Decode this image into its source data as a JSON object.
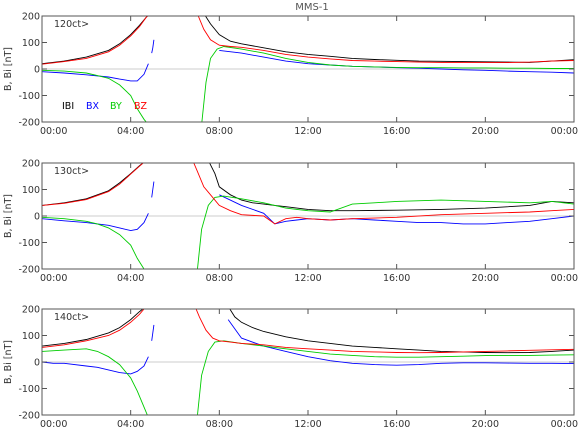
{
  "title": "MMS-1",
  "colors": {
    "B": "#000000",
    "BX": "#0000ff",
    "BY": "#00cc00",
    "BZ": "#ff0000",
    "zero": "#bbbbbb",
    "axis": "#555555"
  },
  "chart_data": [
    {
      "type": "line",
      "panel_label": "120ct>",
      "ylabel": "B, Bi  [nT]",
      "ylim": [
        -200,
        200
      ],
      "yticks": [
        -200,
        -100,
        0,
        100,
        200
      ],
      "xlim": [
        0,
        24
      ],
      "xtick_labels": [
        "00:00",
        "04:00",
        "08:00",
        "12:00",
        "16:00",
        "20:00",
        "00:00"
      ],
      "legend": [
        "IBI",
        "BX",
        "BY",
        "BZ"
      ],
      "series": [
        {
          "name": "IBI",
          "segments": [
            {
              "x": [
                0,
                1,
                2,
                3,
                3.5,
                4,
                4.4,
                4.7,
                4.9
              ],
              "y": [
                20,
                30,
                45,
                70,
                95,
                130,
                165,
                195,
                210
              ]
            },
            {
              "x": [
                7.3,
                7.6,
                8,
                8.5,
                9,
                10,
                11,
                12,
                13,
                14,
                15,
                16,
                17,
                18,
                19,
                20,
                21,
                22,
                23,
                24
              ],
              "y": [
                210,
                170,
                130,
                105,
                95,
                80,
                65,
                55,
                48,
                40,
                36,
                33,
                30,
                29,
                28,
                27,
                26,
                25,
                30,
                35
              ]
            }
          ]
        },
        {
          "name": "BX",
          "segments": [
            {
              "x": [
                0,
                1,
                2,
                3,
                3.5,
                4,
                4.3,
                4.6,
                4.8
              ],
              "y": [
                -10,
                -15,
                -22,
                -30,
                -38,
                -45,
                -45,
                -20,
                20
              ]
            },
            {
              "x": [
                4.95,
                5.0,
                5.05
              ],
              "y": [
                60,
                80,
                110
              ]
            },
            {
              "x": [
                8,
                9,
                10,
                11,
                12,
                13,
                14,
                15,
                16,
                17,
                18,
                19,
                20,
                21,
                22,
                23,
                24
              ],
              "y": [
                70,
                60,
                45,
                30,
                20,
                15,
                10,
                8,
                5,
                3,
                0,
                -3,
                -5,
                -8,
                -10,
                -12,
                -15
              ]
            }
          ]
        },
        {
          "name": "BY",
          "segments": [
            {
              "x": [
                0,
                1,
                2,
                2.5,
                3,
                3.5,
                4,
                4.3,
                4.6,
                4.8
              ],
              "y": [
                -5,
                -8,
                -15,
                -25,
                -35,
                -60,
                -100,
                -150,
                -190,
                -210
              ]
            },
            {
              "x": [
                7.2,
                7.4,
                7.6,
                7.9,
                8.2,
                9,
                10,
                11,
                12,
                13,
                14,
                15,
                16,
                17,
                18,
                19,
                20,
                21,
                22,
                23,
                24
              ],
              "y": [
                -210,
                -50,
                40,
                75,
                85,
                75,
                60,
                40,
                25,
                15,
                10,
                8,
                6,
                5,
                5,
                4,
                4,
                3,
                3,
                2,
                2
              ]
            }
          ]
        },
        {
          "name": "BZ",
          "segments": [
            {
              "x": [
                0,
                1,
                2,
                3,
                3.5,
                4,
                4.4,
                4.7,
                4.9
              ],
              "y": [
                18,
                28,
                40,
                65,
                90,
                125,
                160,
                195,
                210
              ]
            },
            {
              "x": [
                7.0,
                7.3,
                7.6,
                8,
                8.5,
                9,
                10,
                11,
                12,
                13,
                14,
                15,
                16,
                17,
                18,
                19,
                20,
                21,
                22,
                23,
                24
              ],
              "y": [
                210,
                150,
                110,
                90,
                85,
                82,
                70,
                55,
                45,
                38,
                32,
                30,
                28,
                26,
                25,
                24,
                24,
                24,
                26,
                30,
                32
              ]
            }
          ]
        }
      ]
    },
    {
      "type": "line",
      "panel_label": "130ct>",
      "ylabel": "B, Bi  [nT]",
      "ylim": [
        -200,
        200
      ],
      "yticks": [
        -200,
        -100,
        0,
        100,
        200
      ],
      "xlim": [
        0,
        24
      ],
      "xtick_labels": [
        "00:00",
        "04:00",
        "08:00",
        "12:00",
        "16:00",
        "20:00",
        "00:00"
      ],
      "series": [
        {
          "name": "IBI",
          "segments": [
            {
              "x": [
                0,
                1,
                2,
                3,
                3.5,
                4,
                4.4,
                4.7,
                4.9
              ],
              "y": [
                40,
                50,
                65,
                95,
                125,
                160,
                190,
                210,
                210
              ]
            },
            {
              "x": [
                7.5,
                7.8,
                8,
                8.5,
                9,
                9.5,
                10,
                10.5,
                11,
                11.5,
                12,
                13,
                14,
                16,
                18,
                20,
                22,
                23,
                24
              ],
              "y": [
                210,
                160,
                110,
                80,
                60,
                50,
                45,
                40,
                35,
                30,
                25,
                20,
                20,
                22,
                25,
                30,
                40,
                55,
                50
              ]
            }
          ]
        },
        {
          "name": "BX",
          "segments": [
            {
              "x": [
                0,
                1,
                2,
                3,
                3.5,
                4,
                4.3,
                4.6,
                4.8
              ],
              "y": [
                -10,
                -18,
                -25,
                -35,
                -45,
                -55,
                -50,
                -25,
                10
              ]
            },
            {
              "x": [
                4.95,
                5.0,
                5.05
              ],
              "y": [
                70,
                100,
                130
              ]
            },
            {
              "x": [
                8,
                9,
                10,
                10.5,
                11,
                11.5,
                12,
                13,
                14,
                15,
                16,
                17,
                18,
                19,
                20,
                21,
                22,
                23,
                24
              ],
              "y": [
                80,
                40,
                10,
                -30,
                -20,
                -15,
                -10,
                -15,
                -10,
                -15,
                -20,
                -25,
                -25,
                -30,
                -30,
                -25,
                -20,
                -10,
                0
              ]
            }
          ]
        },
        {
          "name": "BY",
          "segments": [
            {
              "x": [
                0,
                1,
                2,
                2.5,
                3,
                3.5,
                4,
                4.3,
                4.6,
                4.8
              ],
              "y": [
                -5,
                -10,
                -20,
                -30,
                -45,
                -70,
                -110,
                -160,
                -200,
                -210
              ]
            },
            {
              "x": [
                7.0,
                7.2,
                7.5,
                7.8,
                8.2,
                9,
                10,
                10.5,
                11,
                11.5,
                12,
                13,
                14,
                15,
                16,
                18,
                20,
                22,
                23,
                24
              ],
              "y": [
                -210,
                -50,
                40,
                70,
                75,
                65,
                50,
                40,
                30,
                25,
                20,
                15,
                45,
                50,
                55,
                60,
                55,
                50,
                55,
                45
              ]
            }
          ]
        },
        {
          "name": "BZ",
          "segments": [
            {
              "x": [
                0,
                1,
                2,
                3,
                3.5,
                4,
                4.4,
                4.7,
                4.9
              ],
              "y": [
                40,
                48,
                62,
                92,
                120,
                158,
                188,
                210,
                210
              ]
            },
            {
              "x": [
                6.8,
                7.0,
                7.3,
                7.7,
                8,
                8.5,
                9,
                10,
                10.5,
                11,
                11.5,
                12,
                13,
                14,
                16,
                18,
                20,
                22,
                23,
                24
              ],
              "y": [
                210,
                170,
                110,
                70,
                40,
                20,
                5,
                0,
                -30,
                -10,
                -5,
                -10,
                -15,
                -10,
                -5,
                5,
                10,
                15,
                20,
                25
              ]
            }
          ]
        }
      ]
    },
    {
      "type": "line",
      "panel_label": "140ct>",
      "ylabel": "B, Bi  [nT]",
      "ylim": [
        -200,
        200
      ],
      "yticks": [
        -200,
        -100,
        0,
        100,
        200
      ],
      "xlim": [
        0,
        24
      ],
      "xtick_labels": [
        "00:00",
        "04:00",
        "08:00",
        "12:00",
        "16:00",
        "20:00",
        "00:00"
      ],
      "series": [
        {
          "name": "IBI",
          "segments": [
            {
              "x": [
                0,
                1,
                2,
                3,
                3.5,
                4,
                4.4,
                4.7,
                4.9
              ],
              "y": [
                60,
                70,
                85,
                110,
                130,
                160,
                190,
                210,
                210
              ]
            },
            {
              "x": [
                8.4,
                8.7,
                9,
                9.5,
                10,
                11,
                12,
                13,
                14,
                15,
                16,
                17,
                18,
                19,
                20,
                21,
                22,
                23,
                24
              ],
              "y": [
                210,
                170,
                150,
                130,
                115,
                95,
                80,
                70,
                60,
                55,
                50,
                45,
                40,
                38,
                36,
                35,
                36,
                40,
                45
              ]
            }
          ]
        },
        {
          "name": "BX",
          "segments": [
            {
              "x": [
                0,
                0.5,
                1,
                2,
                2.5,
                3,
                3.5,
                4,
                4.3,
                4.6,
                4.8
              ],
              "y": [
                0,
                -5,
                -5,
                -15,
                -20,
                -30,
                -40,
                -45,
                -35,
                -15,
                20
              ]
            },
            {
              "x": [
                4.95,
                5.0,
                5.05
              ],
              "y": [
                80,
                110,
                140
              ]
            },
            {
              "x": [
                8.4,
                9,
                10,
                11,
                12,
                13,
                14,
                15,
                16,
                17,
                18,
                19,
                20,
                21,
                22,
                23,
                24
              ],
              "y": [
                160,
                90,
                60,
                40,
                20,
                5,
                -5,
                -10,
                -12,
                -10,
                -5,
                -3,
                -3,
                -4,
                -5,
                -5,
                -6
              ]
            }
          ]
        },
        {
          "name": "BY",
          "segments": [
            {
              "x": [
                0,
                1,
                2,
                2.5,
                3,
                3.5,
                4,
                4.3,
                4.6,
                4.8
              ],
              "y": [
                40,
                45,
                50,
                40,
                20,
                -10,
                -60,
                -110,
                -170,
                -210
              ]
            },
            {
              "x": [
                7.0,
                7.2,
                7.5,
                7.8,
                8.2,
                9,
                10,
                11,
                12,
                13,
                14,
                15,
                16,
                17,
                18,
                19,
                20,
                21,
                22,
                23,
                24
              ],
              "y": [
                -210,
                -50,
                40,
                75,
                80,
                70,
                60,
                50,
                40,
                30,
                25,
                20,
                18,
                18,
                20,
                22,
                24,
                25,
                25,
                26,
                27
              ]
            }
          ]
        },
        {
          "name": "BZ",
          "segments": [
            {
              "x": [
                0,
                1,
                2,
                3,
                3.5,
                4,
                4.4,
                4.7,
                4.9
              ],
              "y": [
                55,
                65,
                80,
                100,
                120,
                150,
                180,
                210,
                210
              ]
            },
            {
              "x": [
                6.9,
                7.1,
                7.4,
                7.7,
                8,
                8.5,
                9,
                10,
                11,
                12,
                13,
                14,
                15,
                16,
                17,
                18,
                19,
                20,
                21,
                22,
                23,
                24
              ],
              "y": [
                210,
                170,
                120,
                90,
                80,
                75,
                70,
                65,
                55,
                50,
                45,
                40,
                38,
                36,
                35,
                36,
                38,
                40,
                42,
                44,
                46,
                48
              ]
            }
          ]
        }
      ]
    }
  ]
}
